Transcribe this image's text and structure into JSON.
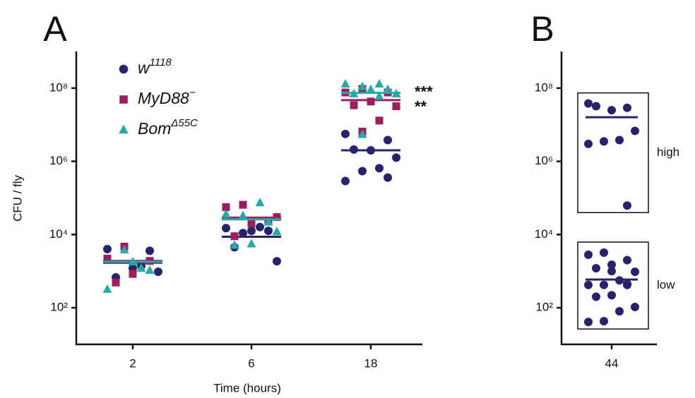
{
  "chart_data": [
    {
      "type": "scatter",
      "panel_label": "A",
      "x_label": "Time (hours)",
      "y_label": "CFU / fly",
      "log_y": true,
      "legend": true,
      "ylim": [
        10,
        1000000000
      ],
      "yticks": [
        {
          "value": 100,
          "label": "10²"
        },
        {
          "value": 10000,
          "label": "10⁴"
        },
        {
          "value": 1000000,
          "label": "10⁶"
        },
        {
          "value": 100000000,
          "label": "10⁸"
        }
      ],
      "categories": [
        "2",
        "6",
        "18"
      ],
      "series": [
        {
          "name": "w",
          "superscript": "1118",
          "color": "#25246b",
          "marker": "circle",
          "values": [
            [
              4000,
              3600,
              1200,
              680,
              960,
              1400
            ],
            [
              15000,
              12600,
              12600,
              4500,
              1860,
              16000,
              11000
            ],
            [
              5600000,
              3800000,
              2000000,
              2100000,
              1260000,
              650000,
              540000,
              290000,
              360000
            ]
          ],
          "medians": [
            1700,
            8700,
            2000000
          ]
        },
        {
          "name": "MyD88",
          "superscript": "−",
          "color": "#9b1f5b",
          "marker": "square",
          "annotation": "**",
          "values": [
            [
              4700,
              2200,
              1900,
              840,
              490
            ],
            [
              65000,
              56000,
              23000,
              20000,
              9000,
              30000
            ],
            [
              95000000,
              76000000,
              76000000,
              43000000,
              34000000,
              32000000,
              13000000,
              6500000
            ]
          ],
          "medians": [
            1900,
            29000,
            47000000
          ]
        },
        {
          "name": "Bom",
          "superscript": "Δ55C",
          "color": "#2aa8a8",
          "marker": "triangle",
          "annotation": "***",
          "values": [
            [
              1200,
              3800,
              320,
              1050,
              1800
            ],
            [
              74000,
              33000,
              36000,
              22000,
              5600,
              5100,
              12000
            ],
            [
              130000000,
              110000000,
              130000000,
              92000000,
              92000000,
              70000000,
              70000000,
              60000000,
              5400000
            ]
          ],
          "medians": [
            1800,
            26000,
            74000000
          ]
        }
      ]
    },
    {
      "type": "scatter",
      "panel_label": "B",
      "log_y": true,
      "boxed": true,
      "ylim": [
        10,
        1000000000
      ],
      "yticks": [
        {
          "value": 100,
          "label": "10²"
        },
        {
          "value": 10000,
          "label": "10⁴"
        },
        {
          "value": 1000000,
          "label": "10⁶"
        },
        {
          "value": 100000000,
          "label": "10⁸"
        }
      ],
      "categories": [
        "44"
      ],
      "series": [
        {
          "name": "high",
          "color": "#25246b",
          "marker": "circle",
          "values": [
            [
              38000000,
              29000000,
              25000000,
              32000000,
              6800000,
              3800000,
              3500000,
              3000000,
              62000
            ]
          ],
          "medians": [
            16000000
          ]
        },
        {
          "name": "low",
          "color": "#25246b",
          "marker": "circle",
          "values": [
            [
              3200,
              2800,
              2000,
              1000,
              1200,
              960,
              560,
              420,
              420,
              420,
              220,
              200,
              105,
              80,
              43,
              41,
              450,
              1500
            ]
          ],
          "medians": [
            590
          ]
        }
      ]
    }
  ]
}
